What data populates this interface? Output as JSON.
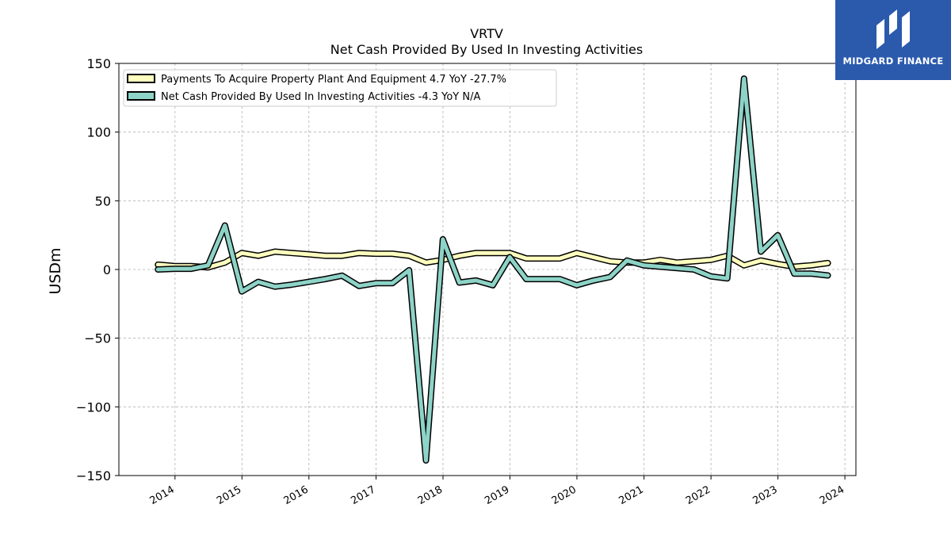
{
  "brand": {
    "name": "MIDGARD FINANCE",
    "color": "#2b5aad"
  },
  "chart_data": {
    "type": "line",
    "title": "VRTV",
    "subtitle": "Net Cash Provided By Used In Investing Activities",
    "xlabel": "",
    "ylabel": "USDm",
    "ylim": [
      -150,
      150
    ],
    "xlim": [
      "2013-03-01",
      "2024-03-01"
    ],
    "yticks": [
      -150,
      -100,
      -50,
      0,
      50,
      100,
      150
    ],
    "ytick_labels": [
      "−150",
      "−100",
      "−50",
      "0",
      "50",
      "100",
      "150"
    ],
    "xtick_labels": [
      "2014",
      "2015",
      "2016",
      "2017",
      "2018",
      "2019",
      "2020",
      "2021",
      "2022",
      "2023",
      "2024"
    ],
    "grid": true,
    "legend_position": "top-left",
    "series": [
      {
        "name": "Payments To Acquire Property Plant And Equipment  4.7 YoY -27.7%",
        "color": "#ffffbf",
        "x": [
          "2013-09-30",
          "2013-12-31",
          "2014-03-31",
          "2014-06-30",
          "2014-09-30",
          "2014-12-31",
          "2015-03-31",
          "2015-06-30",
          "2015-09-30",
          "2015-12-31",
          "2016-03-31",
          "2016-06-30",
          "2016-09-30",
          "2016-12-31",
          "2017-03-31",
          "2017-06-30",
          "2017-09-30",
          "2017-12-31",
          "2018-03-31",
          "2018-06-30",
          "2018-09-30",
          "2018-12-31",
          "2019-03-31",
          "2019-06-30",
          "2019-09-30",
          "2019-12-31",
          "2020-03-31",
          "2020-06-30",
          "2020-09-30",
          "2020-12-31",
          "2021-03-31",
          "2021-06-30",
          "2021-09-30",
          "2021-12-31",
          "2022-03-31",
          "2022-06-30",
          "2022-09-30",
          "2022-12-31",
          "2023-03-31",
          "2023-06-30",
          "2023-09-30"
        ],
        "values": [
          3.5,
          2.5,
          2.5,
          1.5,
          5,
          12,
          10,
          13,
          12,
          11,
          10,
          10,
          12,
          11.5,
          11.5,
          10,
          5,
          7,
          10,
          12,
          12,
          12,
          8,
          8,
          8,
          12,
          9,
          6,
          5,
          5,
          7,
          5,
          6,
          7,
          10,
          3,
          6.5,
          4,
          2,
          3,
          4.7
        ]
      },
      {
        "name": "Net Cash Provided By Used In Investing Activities  -4.3 YoY N/A",
        "color": "#8dd3c7",
        "x": [
          "2013-09-30",
          "2013-12-31",
          "2014-03-31",
          "2014-06-30",
          "2014-09-30",
          "2014-12-31",
          "2015-03-31",
          "2015-06-30",
          "2015-09-30",
          "2015-12-31",
          "2016-03-31",
          "2016-06-30",
          "2016-09-30",
          "2016-12-31",
          "2017-03-31",
          "2017-06-30",
          "2017-09-30",
          "2017-12-31",
          "2018-03-31",
          "2018-06-30",
          "2018-09-30",
          "2018-12-31",
          "2019-03-31",
          "2019-06-30",
          "2019-09-30",
          "2019-12-31",
          "2020-03-31",
          "2020-06-30",
          "2020-09-30",
          "2020-12-31",
          "2021-03-31",
          "2021-06-30",
          "2021-09-30",
          "2021-12-31",
          "2022-03-31",
          "2022-06-30",
          "2022-09-30",
          "2022-12-31",
          "2023-03-31",
          "2023-06-30",
          "2023-09-30"
        ],
        "values": [
          0,
          0.5,
          0.5,
          3,
          32,
          -16,
          -9,
          -12.5,
          -11,
          -9,
          -7,
          -4.5,
          -12,
          -10,
          -10,
          -0.5,
          -139,
          22,
          -9.5,
          -8,
          -11.5,
          9,
          -7,
          -7,
          -7,
          -11.5,
          -8,
          -5.5,
          6.5,
          3,
          2,
          1,
          0,
          -5,
          -6.5,
          139,
          13,
          25,
          -3,
          -3,
          -4.3
        ]
      }
    ]
  }
}
